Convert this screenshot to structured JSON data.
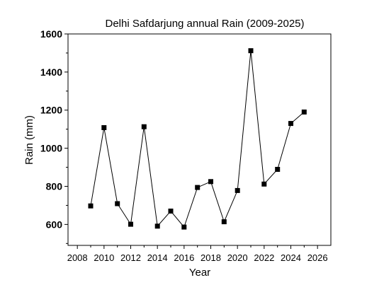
{
  "chart_data": {
    "type": "line",
    "title": "Delhi Safdarjung annual Rain (2009-2025)",
    "xlabel": "Year",
    "ylabel": "Rain (mm)",
    "xlim": [
      2007.3,
      2027.0
    ],
    "ylim": [
      490,
      1600
    ],
    "x_ticks": [
      2008,
      2010,
      2012,
      2014,
      2016,
      2018,
      2020,
      2022,
      2024,
      2026
    ],
    "x_tick_labels": [
      "2008",
      "2010",
      "2012",
      "2014",
      "2016",
      "2018",
      "2020",
      "2022",
      "2024",
      "2026"
    ],
    "y_ticks": [
      600,
      800,
      1000,
      1200,
      1400,
      1600
    ],
    "y_tick_labels": [
      "600",
      "800",
      "1000",
      "1200",
      "1400",
      "1600"
    ],
    "grid": false,
    "marker": "square",
    "series": [
      {
        "x": [
          2009,
          2010,
          2011,
          2012,
          2013,
          2014,
          2015,
          2016,
          2017,
          2018,
          2019,
          2020,
          2021,
          2022,
          2023,
          2024,
          2025
        ],
        "values": [
          697,
          1108,
          709,
          601,
          1113,
          591,
          670,
          586,
          794,
          825,
          614,
          778,
          1512,
          812,
          889,
          1130,
          1190
        ]
      }
    ],
    "colors": {
      "line": "#000000",
      "marker": "#000000",
      "axes": "#000000"
    }
  }
}
